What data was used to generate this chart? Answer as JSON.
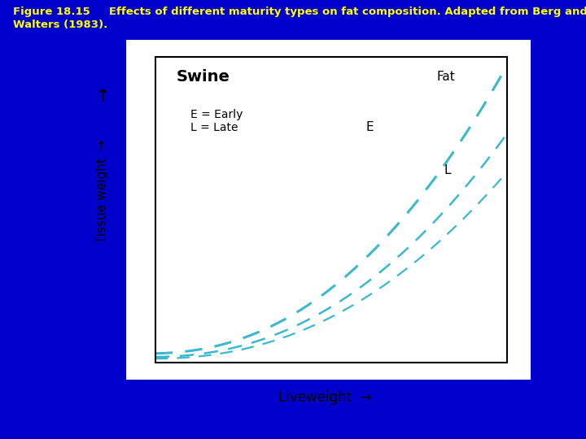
{
  "background_color": "#0000CC",
  "chart_bg": "#FFFFFF",
  "title_line1": "Figure 18.15     Effects of different maturity types on fat composition. Adapted from Berg and",
  "title_line2": "Walters (1983).",
  "title_color": "#FFFF00",
  "title_fontsize": 9.5,
  "chart_title": "Swine",
  "xlabel": "Liveweight",
  "ylabel": "Tissue weight",
  "line_color": "#3BB8CC",
  "annotation_legend": "E = Early\nL = Late"
}
